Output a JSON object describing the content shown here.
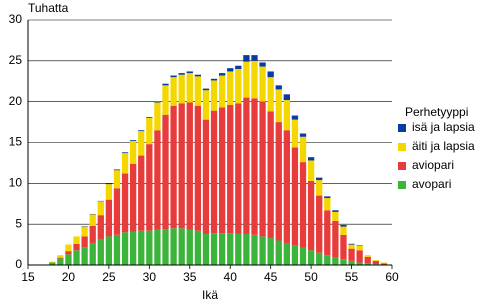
{
  "chart_data": {
    "type": "stacked-bar",
    "y_label": "Tuhatta",
    "x_label": "Ikä",
    "legend_title": "Perhetyyppi",
    "x": [
      18,
      19,
      20,
      21,
      22,
      23,
      24,
      25,
      26,
      27,
      28,
      29,
      30,
      31,
      32,
      33,
      34,
      35,
      36,
      37,
      38,
      39,
      40,
      41,
      42,
      43,
      44,
      45,
      46,
      47,
      48,
      49,
      50,
      51,
      52,
      53,
      54,
      55,
      56,
      57,
      58,
      59
    ],
    "xlim": [
      15,
      60
    ],
    "xticks": [
      15,
      20,
      25,
      30,
      35,
      40,
      45,
      50,
      55,
      60
    ],
    "ylim": [
      0,
      30
    ],
    "yticks": [
      0,
      5,
      10,
      15,
      20,
      25,
      30
    ],
    "grid": true,
    "legend": "right",
    "series": [
      {
        "name": "avopari",
        "color": "#3cb43c",
        "values": [
          0.3,
          0.8,
          1.3,
          1.8,
          2.2,
          2.7,
          3.1,
          3.5,
          3.7,
          4.0,
          4.1,
          4.2,
          4.2,
          4.3,
          4.4,
          4.5,
          4.5,
          4.3,
          4.2,
          3.8,
          3.9,
          3.9,
          3.9,
          3.8,
          3.8,
          3.7,
          3.5,
          3.3,
          3.0,
          2.7,
          2.4,
          2.1,
          1.8,
          1.5,
          1.2,
          0.9,
          0.7,
          0.5,
          0.3,
          0.2,
          0.1,
          0
        ]
      },
      {
        "name": "aviopari",
        "color": "#e83c3c",
        "values": [
          0,
          0.1,
          0.4,
          0.8,
          1.3,
          2.1,
          3.0,
          4.5,
          5.7,
          7.2,
          8.3,
          9.2,
          10.6,
          12.2,
          14.0,
          15.0,
          15.3,
          15.6,
          15.3,
          14.0,
          15.0,
          15.4,
          15.7,
          16.0,
          16.7,
          16.7,
          16.5,
          15.5,
          14.5,
          13.8,
          12.0,
          10.5,
          8.5,
          7.0,
          5.5,
          4.5,
          3.0,
          1.5,
          1.5,
          0.8,
          0.4,
          0.2
        ]
      },
      {
        "name": "äiti ja lapsia",
        "color": "#f5d700",
        "values": [
          0.1,
          0.3,
          0.8,
          0.9,
          1.2,
          1.4,
          1.7,
          1.9,
          2.2,
          2.5,
          2.8,
          3.0,
          3.2,
          3.4,
          3.6,
          3.5,
          3.5,
          3.6,
          3.6,
          3.6,
          3.7,
          3.9,
          4.1,
          4.2,
          4.4,
          4.6,
          4.3,
          4.2,
          4.0,
          3.7,
          3.4,
          3.1,
          2.5,
          1.9,
          1.5,
          1.1,
          1.0,
          0.5,
          0.6,
          0.2,
          0.1,
          0.1
        ]
      },
      {
        "name": "isä ja lapsia",
        "color": "#0a3ca0",
        "values": [
          0,
          0,
          0,
          0,
          0.05,
          0.05,
          0.05,
          0.1,
          0.1,
          0.1,
          0.1,
          0.1,
          0.1,
          0.1,
          0.2,
          0.2,
          0.2,
          0.2,
          0.2,
          0.2,
          0.2,
          0.3,
          0.4,
          0.4,
          0.8,
          0.7,
          0.5,
          0.7,
          0.5,
          0.7,
          0.5,
          0.4,
          0.4,
          0.3,
          0.2,
          0.2,
          0.2,
          0.1,
          0.05,
          0,
          0,
          0
        ]
      }
    ]
  }
}
